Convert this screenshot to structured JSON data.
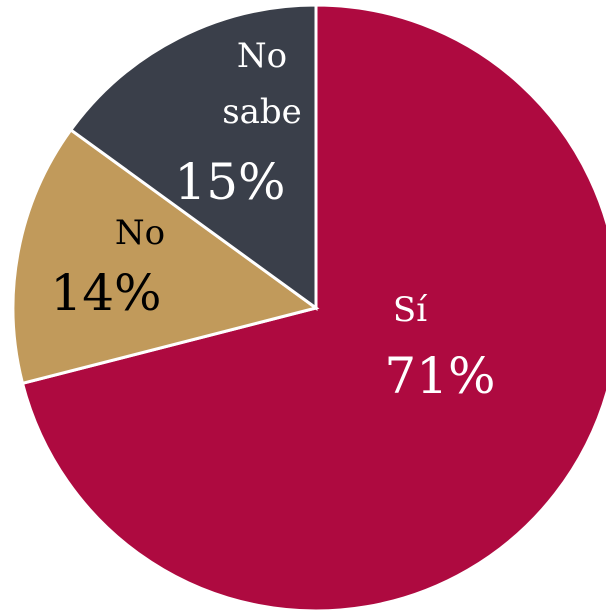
{
  "chart_data": {
    "type": "pie",
    "categories": [
      "Sí",
      "No",
      "No sabe"
    ],
    "values": [
      71,
      14,
      15
    ],
    "value_labels": [
      "71%",
      "14%",
      "15%"
    ],
    "colors": [
      "#ae0a40",
      "#c19a5b",
      "#3a3f4a"
    ]
  }
}
